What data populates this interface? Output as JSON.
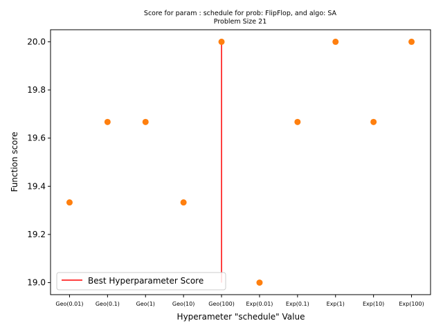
{
  "chart_data": {
    "type": "scatter",
    "title": "Score for param : schedule for prob: FlipFlop, and algo: SA",
    "subtitle": "Problem Size 21",
    "xlabel": "Hyperameter \"schedule\" Value",
    "ylabel": "Function score",
    "categories": [
      "Geo(0.01)",
      "Geo(0.1)",
      "Geo(1)",
      "Geo(10)",
      "Geo(100)",
      "Exp(0.01)",
      "Exp(0.1)",
      "Exp(1)",
      "Exp(10)",
      "Exp(100)"
    ],
    "series": [
      {
        "values": [
          19.333,
          19.667,
          19.667,
          19.333,
          20.0,
          19.0,
          19.667,
          20.0,
          19.667,
          20.0
        ],
        "color": "#ff7f0e"
      }
    ],
    "best_line": {
      "name": "Best Hyperparameter Score",
      "category": "Geo(100)",
      "y_from": 19.0,
      "y_to": 20.0,
      "color": "#ff0000"
    },
    "ylim": [
      18.95,
      20.05
    ],
    "yticks": [
      19.0,
      19.2,
      19.4,
      19.6,
      19.8,
      20.0
    ],
    "ytick_labels": [
      "19.0",
      "19.2",
      "19.4",
      "19.6",
      "19.8",
      "20.0"
    ],
    "grid": false,
    "legend_position": "lower-left"
  }
}
